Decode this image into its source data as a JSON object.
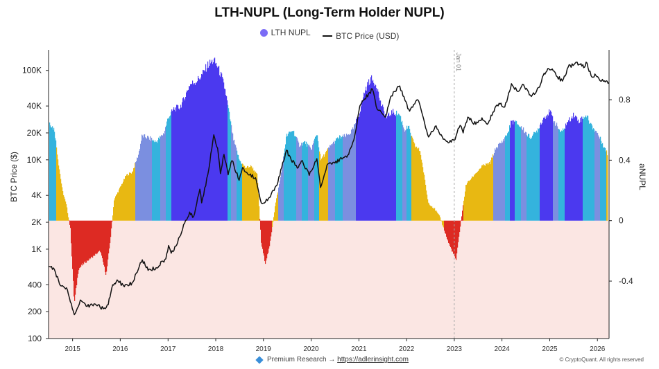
{
  "page": {
    "footer_text": "Premium Research →",
    "footer_link": "https://adlerinsight.com",
    "copyright": "© CryptoQuant. All rights reserved"
  },
  "chart_data": {
    "type": "area",
    "title": "LTH-NUPL (Long-Term Holder NUPL)",
    "legend": {
      "placement": "top-center",
      "entries": [
        "LTH NUPL",
        "BTC Price (USD)"
      ]
    },
    "ylabel_left": "BTC Price ($)",
    "ylabel_right": "aNUPL",
    "left_axis": {
      "scale": "log",
      "range": [
        100,
        170000
      ],
      "ticks": [
        100,
        200,
        400,
        1000,
        2000,
        4000,
        10000,
        20000,
        40000,
        100000
      ],
      "tick_labels": [
        "100",
        "200",
        "400",
        "1K",
        "2K",
        "4K",
        "10K",
        "20K",
        "40K",
        "100K"
      ]
    },
    "right_axis": {
      "range": [
        -0.78,
        1.13
      ],
      "ticks": [
        -0.4,
        0,
        0.4,
        0.8
      ],
      "tick_labels": [
        "-0.4",
        "0",
        "0.4",
        "0.8"
      ]
    },
    "x_axis": {
      "range": [
        "2014-07-01",
        "2026-03-31"
      ],
      "ticks": [
        "2015",
        "2016",
        "2017",
        "2018",
        "2019",
        "2020",
        "2021",
        "2022",
        "2023",
        "2024",
        "2025",
        "2026"
      ]
    },
    "annotation": {
      "x": "2023-01-01",
      "label": "Jan 01"
    },
    "colors": {
      "euphoria": "#4b39ef",
      "belief": "#7b8fe0",
      "optimism": "#34b3dd",
      "hope": "#e8b812",
      "capitulation": "#dd2a23",
      "negative_band": "#fbe6e3",
      "price_line": "#111111"
    },
    "series": [
      {
        "name": "LTH NUPL",
        "x": [
          "2014-07-01",
          "2014-08-15",
          "2014-09-15",
          "2014-10-15",
          "2014-11-15",
          "2014-12-15",
          "2015-01-14",
          "2015-02-15",
          "2015-04-01",
          "2015-06-01",
          "2015-08-01",
          "2015-09-15",
          "2015-10-20",
          "2015-11-15",
          "2016-01-01",
          "2016-02-15",
          "2016-04-01",
          "2016-05-20",
          "2016-06-15",
          "2016-08-01",
          "2016-10-01",
          "2016-12-01",
          "2017-01-01",
          "2017-02-15",
          "2017-04-01",
          "2017-05-01",
          "2017-06-15",
          "2017-08-01",
          "2017-09-15",
          "2017-11-01",
          "2017-12-17",
          "2018-01-15",
          "2018-02-15",
          "2018-03-15",
          "2018-04-15",
          "2018-05-15",
          "2018-07-01",
          "2018-08-15",
          "2018-10-01",
          "2018-11-15",
          "2018-12-15",
          "2019-01-15",
          "2019-02-15",
          "2019-04-01",
          "2019-05-15",
          "2019-06-26",
          "2019-08-15",
          "2019-10-01",
          "2019-11-15",
          "2020-01-01",
          "2020-02-15",
          "2020-03-15",
          "2020-04-15",
          "2020-06-01",
          "2020-08-01",
          "2020-10-01",
          "2020-11-15",
          "2021-01-01",
          "2021-02-15",
          "2021-04-01",
          "2021-05-15",
          "2021-06-15",
          "2021-08-01",
          "2021-09-15",
          "2021-11-10",
          "2021-12-15",
          "2022-01-15",
          "2022-03-01",
          "2022-04-15",
          "2022-05-15",
          "2022-06-15",
          "2022-08-01",
          "2022-09-15",
          "2022-11-15",
          "2022-12-15",
          "2023-01-15",
          "2023-02-15",
          "2023-04-01",
          "2023-06-01",
          "2023-08-01",
          "2023-10-01",
          "2023-11-15",
          "2024-01-01",
          "2024-02-15",
          "2024-03-15",
          "2024-05-01",
          "2024-06-15",
          "2024-08-01",
          "2024-09-15",
          "2024-11-15",
          "2025-01-01",
          "2025-02-15",
          "2025-04-01",
          "2025-05-15",
          "2025-07-01",
          "2025-08-15",
          "2025-10-06",
          "2025-11-15",
          "2025-12-31",
          "2026-02-15",
          "2026-03-31"
        ],
        "values": [
          0.66,
          0.6,
          0.38,
          0.2,
          0.1,
          -0.05,
          -0.55,
          -0.32,
          -0.28,
          -0.24,
          -0.2,
          -0.36,
          -0.1,
          0.14,
          0.22,
          0.3,
          0.32,
          0.44,
          0.56,
          0.55,
          0.52,
          0.58,
          0.68,
          0.74,
          0.75,
          0.8,
          0.9,
          0.92,
          0.96,
          1.03,
          1.06,
          1.02,
          0.95,
          0.86,
          0.7,
          0.54,
          0.4,
          0.35,
          0.36,
          0.3,
          -0.15,
          -0.28,
          -0.18,
          0.1,
          0.3,
          0.56,
          0.6,
          0.5,
          0.52,
          0.47,
          0.58,
          0.4,
          0.44,
          0.5,
          0.55,
          0.56,
          0.6,
          0.7,
          0.86,
          0.94,
          0.9,
          0.78,
          0.68,
          0.72,
          0.7,
          0.6,
          0.62,
          0.5,
          0.46,
          0.3,
          0.12,
          0.08,
          0.02,
          -0.14,
          -0.2,
          -0.26,
          -0.04,
          0.24,
          0.3,
          0.36,
          0.38,
          0.48,
          0.52,
          0.58,
          0.66,
          0.64,
          0.6,
          0.55,
          0.58,
          0.68,
          0.72,
          0.64,
          0.58,
          0.65,
          0.7,
          0.66,
          0.7,
          0.63,
          0.58,
          0.5,
          0.42
        ],
        "colors": [
          "optimism",
          "optimism",
          "hope",
          "hope",
          "hope",
          "capitulation",
          "capitulation",
          "capitulation",
          "capitulation",
          "capitulation",
          "capitulation",
          "capitulation",
          "capitulation",
          "hope",
          "hope",
          "hope",
          "hope",
          "belief",
          "belief",
          "belief",
          "optimism",
          "belief",
          "optimism",
          "euphoria",
          "euphoria",
          "euphoria",
          "euphoria",
          "euphoria",
          "euphoria",
          "euphoria",
          "euphoria",
          "euphoria",
          "euphoria",
          "euphoria",
          "optimism",
          "belief",
          "optimism",
          "hope",
          "hope",
          "hope",
          "capitulation",
          "capitulation",
          "capitulation",
          "hope",
          "belief",
          "optimism",
          "optimism",
          "belief",
          "optimism",
          "belief",
          "optimism",
          "hope",
          "hope",
          "belief",
          "optimism",
          "belief",
          "belief",
          "euphoria",
          "euphoria",
          "euphoria",
          "euphoria",
          "euphoria",
          "euphoria",
          "euphoria",
          "optimism",
          "belief",
          "optimism",
          "hope",
          "hope",
          "hope",
          "hope",
          "hope",
          "hope",
          "capitulation",
          "capitulation",
          "capitulation",
          "capitulation",
          "hope",
          "hope",
          "hope",
          "hope",
          "belief",
          "belief",
          "optimism",
          "euphoria",
          "optimism",
          "belief",
          "optimism",
          "optimism",
          "euphoria",
          "euphoria",
          "belief",
          "optimism",
          "euphoria",
          "euphoria",
          "euphoria",
          "optimism",
          "optimism",
          "belief",
          "optimism",
          "hope"
        ]
      },
      {
        "name": "BTC Price (USD)",
        "x": [
          "2014-07-01",
          "2014-08-15",
          "2014-10-01",
          "2014-11-15",
          "2015-01-14",
          "2015-03-01",
          "2015-04-15",
          "2015-06-15",
          "2015-08-24",
          "2015-10-01",
          "2015-11-04",
          "2015-12-15",
          "2016-02-01",
          "2016-04-01",
          "2016-06-18",
          "2016-08-01",
          "2016-10-01",
          "2016-12-15",
          "2017-01-05",
          "2017-01-25",
          "2017-03-15",
          "2017-05-15",
          "2017-06-15",
          "2017-07-15",
          "2017-09-01",
          "2017-09-15",
          "2017-11-01",
          "2017-12-17",
          "2018-01-15",
          "2018-02-06",
          "2018-03-05",
          "2018-04-06",
          "2018-05-05",
          "2018-06-29",
          "2018-07-25",
          "2018-09-01",
          "2018-11-01",
          "2018-12-15",
          "2019-02-01",
          "2019-04-15",
          "2019-06-26",
          "2019-08-01",
          "2019-09-25",
          "2019-10-26",
          "2019-12-18",
          "2020-02-14",
          "2020-03-13",
          "2020-05-01",
          "2020-07-01",
          "2020-09-01",
          "2020-10-15",
          "2020-12-01",
          "2021-01-08",
          "2021-02-15",
          "2021-04-14",
          "2021-05-20",
          "2021-07-20",
          "2021-09-07",
          "2021-11-10",
          "2021-12-20",
          "2022-01-24",
          "2022-03-28",
          "2022-05-12",
          "2022-06-18",
          "2022-08-15",
          "2022-09-15",
          "2022-11-09",
          "2022-12-30",
          "2023-02-15",
          "2023-03-10",
          "2023-04-14",
          "2023-06-15",
          "2023-08-01",
          "2023-09-11",
          "2023-10-24",
          "2023-12-10",
          "2024-01-23",
          "2024-03-14",
          "2024-05-01",
          "2024-06-07",
          "2024-08-05",
          "2024-09-06",
          "2024-10-15",
          "2024-11-12",
          "2024-12-17",
          "2025-01-20",
          "2025-02-28",
          "2025-04-08",
          "2025-05-22",
          "2025-07-14",
          "2025-08-14",
          "2025-09-25",
          "2025-10-06",
          "2025-11-21",
          "2025-12-20",
          "2026-02-01",
          "2026-03-31"
        ],
        "values": [
          640,
          590,
          390,
          370,
          185,
          270,
          230,
          245,
          215,
          240,
          400,
          440,
          380,
          420,
          760,
          580,
          620,
          780,
          1100,
          900,
          1180,
          2100,
          2600,
          2300,
          4700,
          3300,
          6800,
          19000,
          13500,
          7000,
          11500,
          6800,
          9800,
          5900,
          8200,
          7000,
          6300,
          3300,
          3500,
          5200,
          12800,
          10000,
          8200,
          9800,
          6700,
          10300,
          4900,
          8700,
          9200,
          10500,
          11500,
          19000,
          40000,
          48000,
          62000,
          37000,
          30000,
          52000,
          67000,
          46000,
          35000,
          47000,
          28500,
          18000,
          24000,
          19000,
          16000,
          16500,
          24300,
          20000,
          30000,
          25000,
          29500,
          25000,
          34000,
          43000,
          39000,
          71000,
          58000,
          70000,
          53000,
          54000,
          65000,
          88000,
          105000,
          104000,
          85000,
          76000,
          109000,
          120000,
          117000,
          109000,
          124000,
          84000,
          88000,
          76000,
          73000
        ]
      }
    ]
  }
}
